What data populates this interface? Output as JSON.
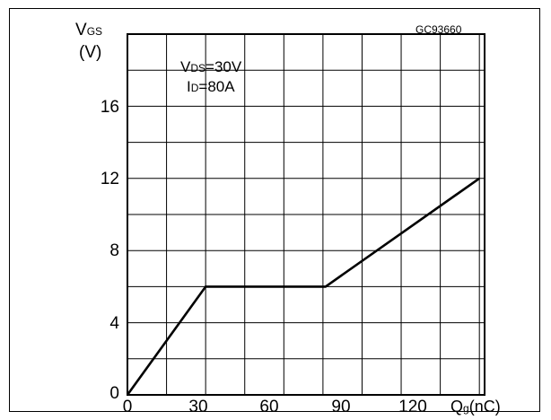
{
  "chart_data": {
    "type": "line",
    "code": "GC93660",
    "ylabel": {
      "main": "V",
      "sub": "GS",
      "unit": "(V)"
    },
    "xlabel": {
      "main": "Q",
      "sub": "g",
      "unit": "(nC)"
    },
    "annotation": [
      {
        "main": "V",
        "sub": "DS",
        "value": "=30V"
      },
      {
        "main": "I",
        "sub": "D",
        "value": "=80A"
      }
    ],
    "x_ticks": [
      "0",
      "30",
      "60",
      "90",
      "120"
    ],
    "y_ticks": [
      "0",
      "4",
      "8",
      "12",
      "16"
    ],
    "xlim": [
      0,
      137
    ],
    "ylim": [
      0,
      20
    ],
    "grid": true,
    "series": [
      {
        "x": [
          0,
          30,
          76,
          135
        ],
        "y": [
          0,
          6,
          6,
          12
        ]
      }
    ]
  }
}
